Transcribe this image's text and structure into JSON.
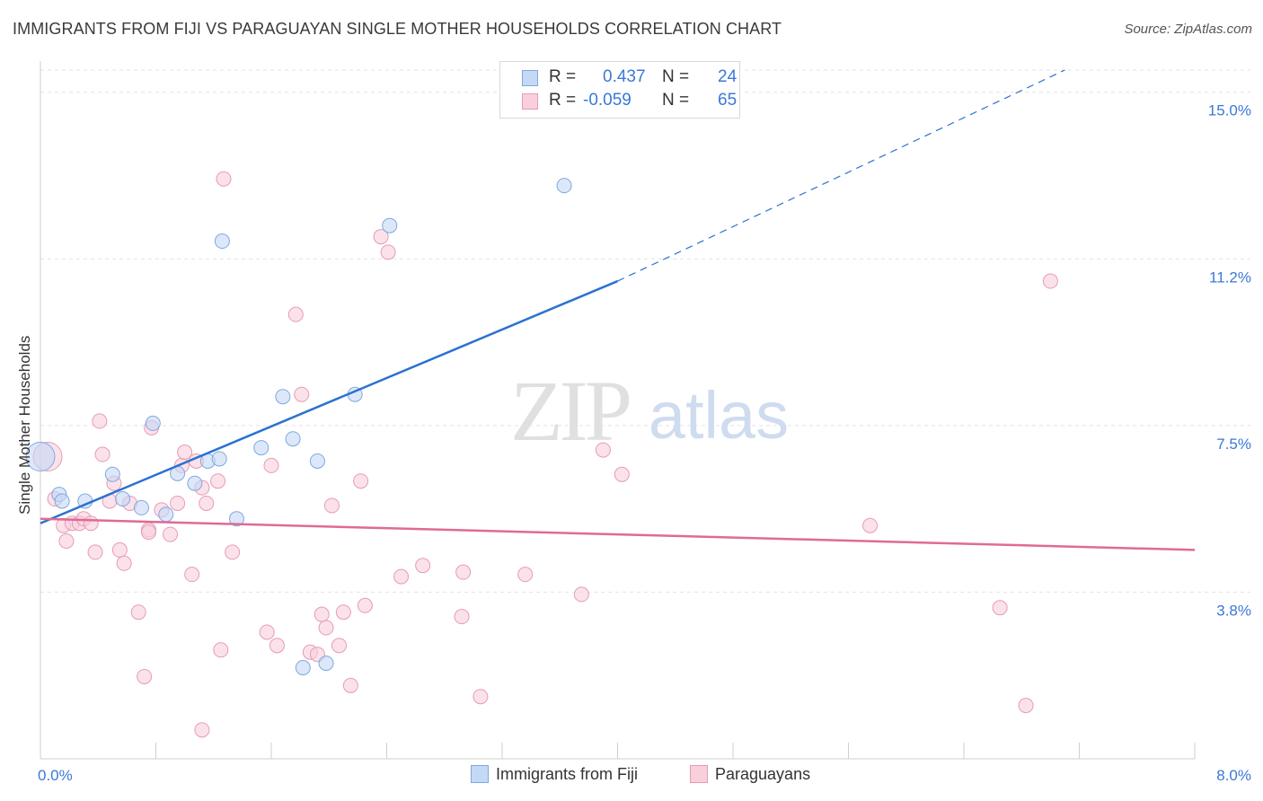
{
  "title": "IMMIGRANTS FROM FIJI VS PARAGUAYAN SINGLE MOTHER HOUSEHOLDS CORRELATION CHART",
  "source": "Source: ZipAtlas.com",
  "watermark": {
    "zip": "ZIP",
    "atlas": "atlas"
  },
  "legend": {
    "r_label": "R =",
    "n_label": "N =",
    "rows": [
      {
        "r": "0.437",
        "n": "24"
      },
      {
        "r": "-0.059",
        "n": "65"
      }
    ]
  },
  "colors": {
    "blue_fill": "#c4d9f5",
    "blue_stroke": "#7fa8e0",
    "blue_line": "#2a72d0",
    "pink_fill": "#f9cfdc",
    "pink_stroke": "#e79bb4",
    "pink_line": "#e06a95",
    "tick_label": "#3b78d8"
  },
  "chart_data": {
    "type": "scatter",
    "title": "IMMIGRANTS FROM FIJI VS PARAGUAYAN SINGLE MOTHER HOUSEHOLDS CORRELATION CHART",
    "xlabel": "",
    "ylabel": "Single Mother Households",
    "xlim": [
      0,
      8
    ],
    "ylim": [
      0,
      15.5
    ],
    "x_tick_labels": [
      "0.0%",
      "8.0%"
    ],
    "y_ticks": [
      3.75,
      7.5,
      11.25,
      15.0
    ],
    "y_tick_labels": [
      "3.8%",
      "7.5%",
      "11.2%",
      "15.0%"
    ],
    "grid": true,
    "legend_position": "top-center",
    "series": [
      {
        "name": "Immigrants from Fiji",
        "color": "#7fa8e0",
        "points": [
          [
            0.0,
            6.8
          ],
          [
            0.13,
            5.95
          ],
          [
            0.31,
            5.8
          ],
          [
            0.57,
            5.85
          ],
          [
            0.5,
            6.4
          ],
          [
            0.7,
            5.65
          ],
          [
            0.87,
            5.5
          ],
          [
            0.78,
            7.55
          ],
          [
            0.95,
            6.42
          ],
          [
            1.07,
            6.2
          ],
          [
            1.16,
            6.7
          ],
          [
            1.24,
            6.75
          ],
          [
            1.36,
            5.4
          ],
          [
            1.53,
            7.0
          ],
          [
            1.68,
            8.15
          ],
          [
            1.75,
            7.2
          ],
          [
            1.92,
            6.7
          ],
          [
            2.18,
            8.2
          ],
          [
            1.26,
            11.65
          ],
          [
            2.42,
            12.0
          ],
          [
            3.63,
            12.9
          ],
          [
            1.82,
            2.05
          ],
          [
            1.98,
            2.15
          ],
          [
            0.15,
            5.8
          ]
        ]
      },
      {
        "name": "Paraguayans",
        "color": "#e79bb4",
        "points": [
          [
            0.05,
            6.8
          ],
          [
            0.1,
            5.85
          ],
          [
            0.16,
            5.25
          ],
          [
            0.18,
            4.9
          ],
          [
            0.22,
            5.3
          ],
          [
            0.27,
            5.3
          ],
          [
            0.3,
            5.4
          ],
          [
            0.35,
            5.3
          ],
          [
            0.38,
            4.65
          ],
          [
            0.41,
            7.6
          ],
          [
            0.43,
            6.85
          ],
          [
            0.48,
            5.8
          ],
          [
            0.51,
            6.2
          ],
          [
            0.55,
            4.7
          ],
          [
            0.58,
            4.4
          ],
          [
            0.62,
            5.75
          ],
          [
            0.68,
            3.3
          ],
          [
            0.75,
            5.15
          ],
          [
            0.75,
            5.1
          ],
          [
            0.77,
            7.45
          ],
          [
            0.84,
            5.6
          ],
          [
            0.9,
            5.05
          ],
          [
            0.95,
            5.75
          ],
          [
            0.98,
            6.6
          ],
          [
            1.0,
            6.9
          ],
          [
            1.05,
            4.15
          ],
          [
            1.08,
            6.7
          ],
          [
            1.12,
            6.1
          ],
          [
            1.15,
            5.75
          ],
          [
            1.23,
            6.25
          ],
          [
            1.27,
            13.05
          ],
          [
            1.33,
            4.65
          ],
          [
            1.57,
            2.85
          ],
          [
            1.6,
            6.6
          ],
          [
            1.64,
            2.55
          ],
          [
            1.77,
            10.0
          ],
          [
            1.81,
            8.2
          ],
          [
            1.87,
            2.4
          ],
          [
            1.92,
            2.35
          ],
          [
            1.95,
            3.25
          ],
          [
            1.98,
            2.95
          ],
          [
            2.02,
            5.7
          ],
          [
            2.07,
            2.55
          ],
          [
            2.1,
            3.3
          ],
          [
            2.15,
            1.65
          ],
          [
            2.22,
            6.25
          ],
          [
            2.25,
            3.45
          ],
          [
            2.36,
            11.75
          ],
          [
            2.41,
            11.4
          ],
          [
            2.5,
            4.1
          ],
          [
            2.65,
            4.35
          ],
          [
            2.92,
            3.2
          ],
          [
            2.93,
            4.2
          ],
          [
            3.05,
            1.4
          ],
          [
            3.36,
            4.15
          ],
          [
            3.75,
            3.7
          ],
          [
            3.9,
            6.95
          ],
          [
            4.03,
            6.4
          ],
          [
            5.75,
            5.25
          ],
          [
            6.65,
            3.4
          ],
          [
            6.83,
            1.2
          ],
          [
            7.0,
            10.75
          ],
          [
            0.72,
            1.85
          ],
          [
            1.12,
            0.65
          ],
          [
            1.25,
            2.45
          ]
        ]
      }
    ],
    "trendlines": [
      {
        "series": "Immigrants from Fiji",
        "x": [
          0.0,
          4.0
        ],
        "y": [
          5.3,
          10.75
        ],
        "dashed_extension_to": [
          7.1,
          15.5
        ]
      },
      {
        "series": "Paraguayans",
        "x": [
          0.0,
          8.0
        ],
        "y": [
          5.4,
          4.7
        ]
      }
    ]
  }
}
